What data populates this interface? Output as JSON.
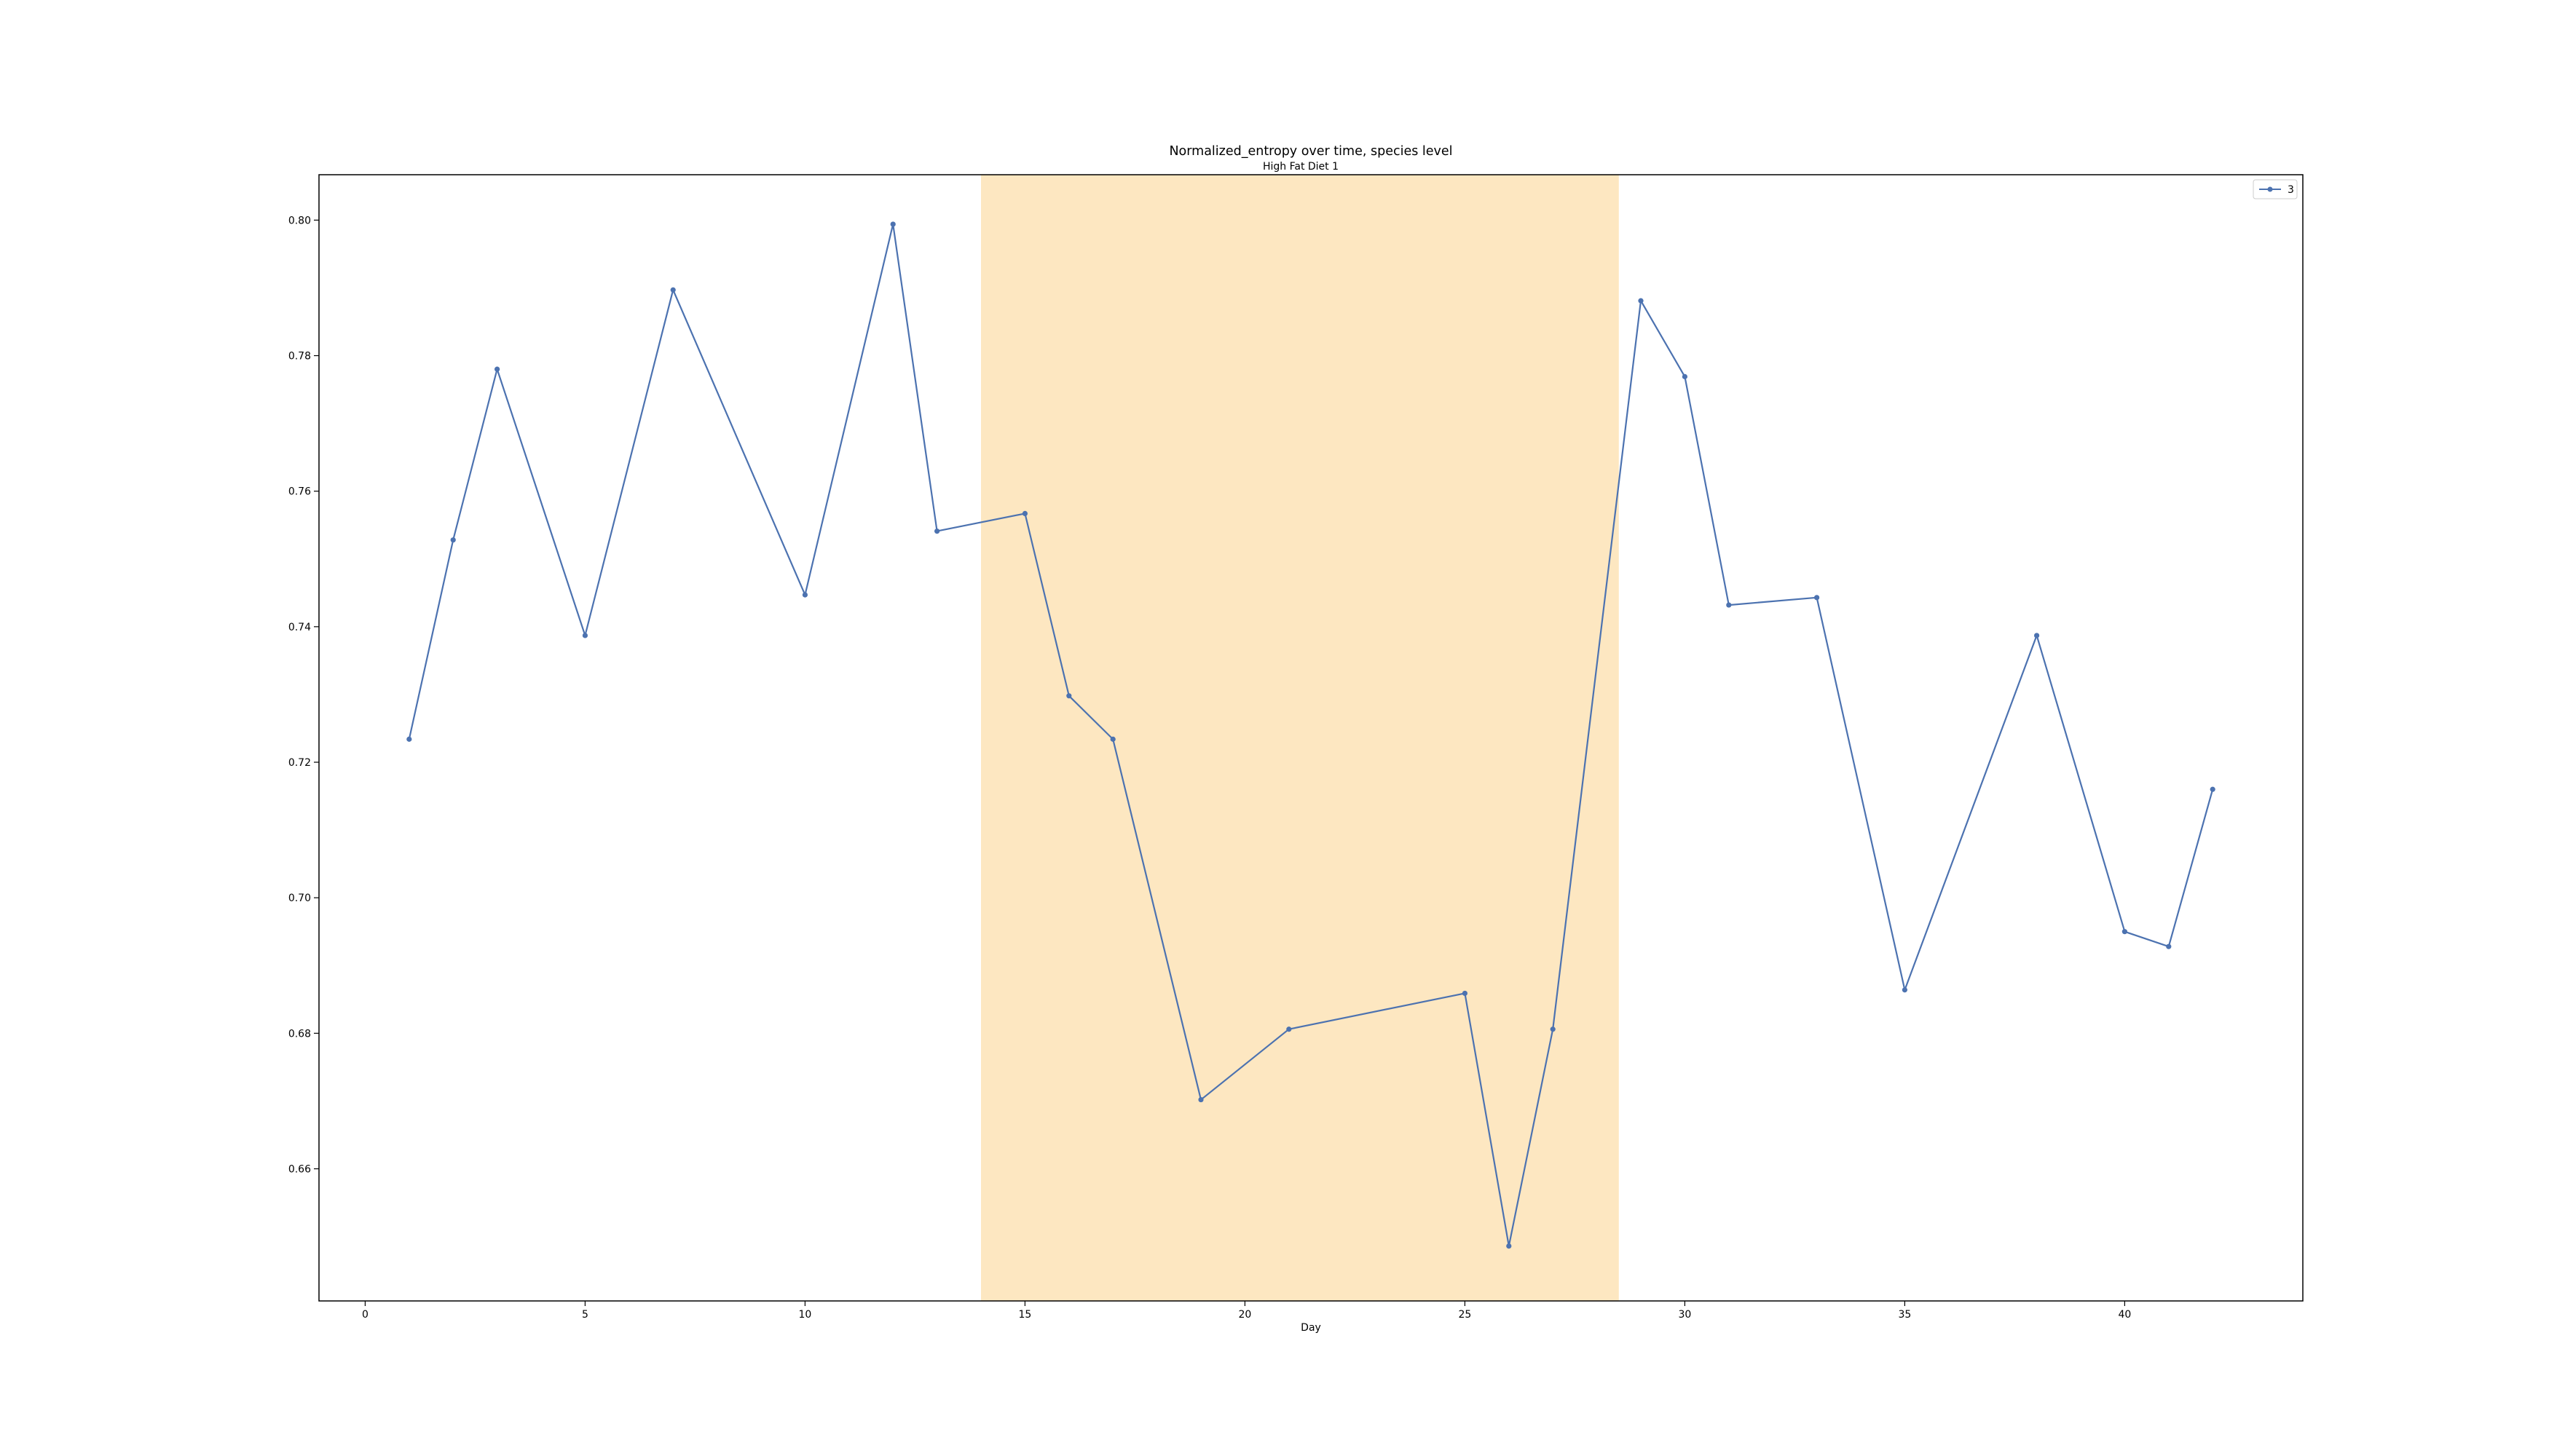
{
  "chart_data": {
    "type": "line",
    "title": "Normalized_entropy over time, species level",
    "subtitle": "High Fat Diet 1",
    "xlabel": "Day",
    "ylabel": "",
    "xlim": [
      -1.05,
      44.05
    ],
    "ylim": [
      0.6405,
      0.8067
    ],
    "xticks": [
      0,
      5,
      10,
      15,
      20,
      25,
      30,
      35,
      40
    ],
    "yticks": [
      0.66,
      0.68,
      0.7,
      0.72,
      0.74,
      0.76,
      0.78,
      0.8
    ],
    "ytick_labels": [
      "0.66",
      "0.68",
      "0.70",
      "0.72",
      "0.74",
      "0.76",
      "0.78",
      "0.80"
    ],
    "grid": false,
    "legend_position": "top-right",
    "highlight_span": {
      "x_start": 14,
      "x_end": 28.5,
      "color": "#fde7c1"
    },
    "series": [
      {
        "name": "3",
        "color": "#4c72b0",
        "marker": "circle",
        "x": [
          1,
          2,
          3,
          5,
          7,
          10,
          12,
          13,
          15,
          16,
          17,
          19,
          21,
          25,
          26,
          27,
          29,
          30,
          31,
          33,
          35,
          38,
          40,
          41,
          42
        ],
        "y": [
          0.7234,
          0.7528,
          0.778,
          0.7387,
          0.7897,
          0.7447,
          0.7994,
          0.7541,
          0.7567,
          0.7298,
          0.7234,
          0.6702,
          0.6806,
          0.6859,
          0.6486,
          0.6806,
          0.7881,
          0.7769,
          0.7432,
          0.7443,
          0.6864,
          0.7387,
          0.695,
          0.6928,
          0.716
        ]
      }
    ]
  }
}
